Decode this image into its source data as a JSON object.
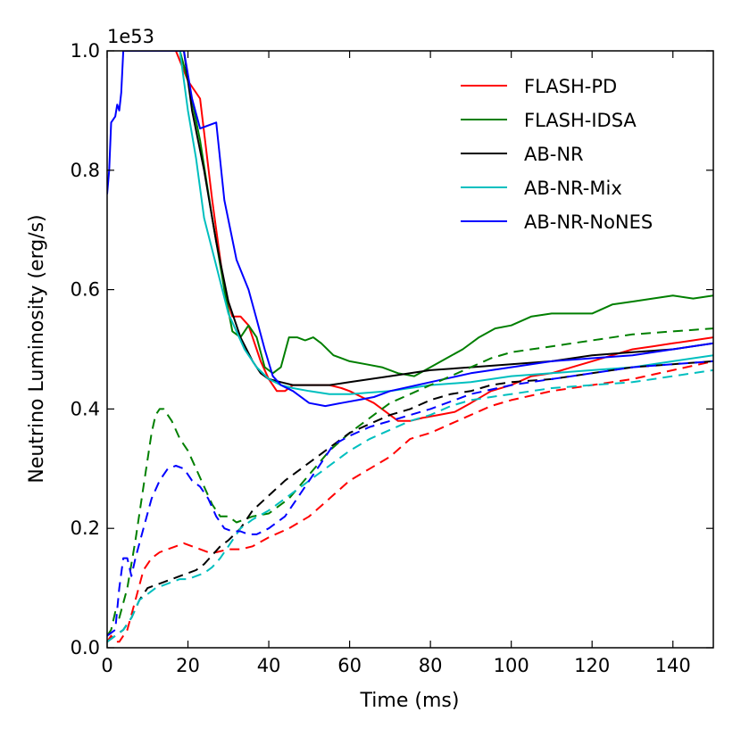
{
  "chart_data": {
    "type": "line",
    "title": "",
    "xlabel": "Time (ms)",
    "ylabel": "Neutrino Luminosity (erg/s)",
    "offset_label": "1e53",
    "xlim": [
      0,
      150
    ],
    "ylim": [
      0.0,
      1.0
    ],
    "x_ticks": [
      0,
      20,
      40,
      60,
      80,
      100,
      120,
      140
    ],
    "x_tick_labels": [
      "0",
      "20",
      "40",
      "60",
      "80",
      "100",
      "120",
      "140"
    ],
    "y_ticks": [
      0.0,
      0.2,
      0.4,
      0.6,
      0.8,
      1.0
    ],
    "y_tick_labels": [
      "0.0",
      "0.2",
      "0.4",
      "0.6",
      "0.8",
      "1.0"
    ],
    "grid": false,
    "legend_position": "top-right",
    "legend": [
      "FLASH-PD",
      "FLASH-IDSA",
      "AB-NR",
      "AB-NR-Mix",
      "AB-NR-NoNES"
    ],
    "series": [
      {
        "name": "FLASH-PD",
        "color": "#ff0000",
        "style": "solid",
        "x": [
          17,
          20,
          23,
          26,
          29,
          31,
          33,
          35,
          38,
          40,
          42,
          44,
          46,
          48,
          50,
          52,
          55,
          58,
          60,
          63,
          66,
          69,
          72,
          75,
          78,
          82,
          86,
          90,
          95,
          100,
          105,
          110,
          115,
          120,
          125,
          130,
          135,
          140,
          145,
          150
        ],
        "y": [
          1.0,
          0.95,
          0.92,
          0.75,
          0.6,
          0.555,
          0.555,
          0.54,
          0.48,
          0.45,
          0.43,
          0.43,
          0.44,
          0.44,
          0.44,
          0.44,
          0.44,
          0.435,
          0.43,
          0.42,
          0.41,
          0.395,
          0.38,
          0.38,
          0.385,
          0.39,
          0.395,
          0.41,
          0.43,
          0.44,
          0.455,
          0.46,
          0.47,
          0.48,
          0.49,
          0.5,
          0.505,
          0.51,
          0.515,
          0.52
        ]
      },
      {
        "name": "FLASH-IDSA",
        "color": "#007f00",
        "style": "solid",
        "x": [
          18,
          20,
          23,
          26,
          29,
          31,
          33,
          35,
          37,
          39,
          41,
          43,
          45,
          47,
          49,
          51,
          53,
          56,
          60,
          64,
          68,
          72,
          76,
          80,
          84,
          88,
          92,
          96,
          100,
          105,
          110,
          115,
          120,
          125,
          130,
          135,
          140,
          145,
          150
        ],
        "y": [
          1.0,
          0.95,
          0.85,
          0.72,
          0.6,
          0.53,
          0.52,
          0.54,
          0.52,
          0.47,
          0.46,
          0.47,
          0.52,
          0.52,
          0.515,
          0.52,
          0.51,
          0.49,
          0.48,
          0.475,
          0.47,
          0.46,
          0.455,
          0.47,
          0.485,
          0.5,
          0.52,
          0.535,
          0.54,
          0.555,
          0.56,
          0.56,
          0.56,
          0.575,
          0.58,
          0.585,
          0.59,
          0.585,
          0.59
        ]
      },
      {
        "name": "AB-NR",
        "color": "#000000",
        "style": "solid",
        "x": [
          19,
          21,
          24,
          27,
          30,
          33,
          36,
          38,
          40,
          43,
          46,
          50,
          55,
          60,
          70,
          80,
          90,
          100,
          110,
          120,
          130,
          140,
          150
        ],
        "y": [
          1.0,
          0.9,
          0.8,
          0.68,
          0.58,
          0.52,
          0.48,
          0.46,
          0.45,
          0.445,
          0.44,
          0.44,
          0.44,
          0.445,
          0.455,
          0.465,
          0.47,
          0.475,
          0.48,
          0.49,
          0.495,
          0.5,
          0.51
        ]
      },
      {
        "name": "AB-NR-Mix",
        "color": "#00bfbf",
        "style": "solid",
        "x": [
          18,
          20,
          22,
          24,
          27,
          30,
          32,
          34,
          37,
          40,
          43,
          46,
          50,
          55,
          60,
          70,
          80,
          90,
          100,
          110,
          120,
          130,
          140,
          150
        ],
        "y": [
          1.0,
          0.9,
          0.82,
          0.72,
          0.64,
          0.56,
          0.53,
          0.5,
          0.47,
          0.45,
          0.44,
          0.435,
          0.43,
          0.425,
          0.425,
          0.43,
          0.44,
          0.445,
          0.455,
          0.46,
          0.465,
          0.47,
          0.48,
          0.49
        ]
      },
      {
        "name": "AB-NR-NoNES",
        "color": "#0000ff",
        "style": "solid",
        "x": [
          0,
          0.5,
          1,
          2,
          2.5,
          3,
          3.5,
          4,
          19,
          21,
          23,
          27,
          29,
          32,
          35,
          37,
          39,
          41,
          43,
          46,
          50,
          54,
          58,
          62,
          66,
          70,
          80,
          90,
          100,
          110,
          120,
          130,
          140,
          150
        ],
        "y": [
          0.76,
          0.8,
          0.88,
          0.89,
          0.91,
          0.9,
          0.93,
          1.0,
          1.0,
          0.92,
          0.87,
          0.88,
          0.75,
          0.65,
          0.6,
          0.55,
          0.5,
          0.455,
          0.44,
          0.43,
          0.41,
          0.405,
          0.41,
          0.415,
          0.42,
          0.43,
          0.445,
          0.46,
          0.47,
          0.48,
          0.485,
          0.49,
          0.5,
          0.51
        ]
      },
      {
        "name": "FLASH-PD",
        "color": "#ff0000",
        "style": "dashed",
        "x": [
          0,
          1,
          2,
          3,
          5,
          7,
          9,
          11,
          13,
          15,
          17,
          19,
          21,
          23,
          25,
          27,
          30,
          33,
          36,
          40,
          45,
          50,
          55,
          60,
          65,
          70,
          75,
          80,
          85,
          90,
          95,
          100,
          110,
          120,
          130,
          140,
          150
        ],
        "y": [
          0.01,
          0.02,
          0.01,
          0.01,
          0.03,
          0.08,
          0.13,
          0.15,
          0.16,
          0.165,
          0.17,
          0.175,
          0.17,
          0.165,
          0.16,
          0.16,
          0.165,
          0.165,
          0.17,
          0.185,
          0.2,
          0.22,
          0.25,
          0.28,
          0.3,
          0.32,
          0.35,
          0.36,
          0.375,
          0.39,
          0.405,
          0.415,
          0.43,
          0.44,
          0.45,
          0.465,
          0.48
        ]
      },
      {
        "name": "FLASH-IDSA",
        "color": "#007f00",
        "style": "dashed",
        "x": [
          0,
          1,
          2,
          3,
          5,
          7,
          9,
          11,
          12,
          13,
          14,
          16,
          18,
          20,
          22,
          24,
          26,
          28,
          30,
          32,
          34,
          36,
          40,
          45,
          50,
          55,
          60,
          65,
          70,
          75,
          80,
          85,
          90,
          95,
          100,
          110,
          120,
          130,
          140,
          150
        ],
        "y": [
          0.02,
          0.03,
          0.06,
          0.05,
          0.1,
          0.18,
          0.27,
          0.36,
          0.39,
          0.4,
          0.4,
          0.38,
          0.35,
          0.33,
          0.3,
          0.27,
          0.24,
          0.22,
          0.22,
          0.21,
          0.215,
          0.22,
          0.225,
          0.25,
          0.29,
          0.33,
          0.36,
          0.385,
          0.41,
          0.425,
          0.44,
          0.455,
          0.47,
          0.485,
          0.495,
          0.505,
          0.515,
          0.525,
          0.53,
          0.535
        ]
      },
      {
        "name": "AB-NR",
        "color": "#000000",
        "style": "dashed",
        "x": [
          0,
          2,
          4,
          6,
          8,
          10,
          12,
          14,
          16,
          18,
          20,
          22,
          24,
          26,
          28,
          30,
          33,
          36,
          40,
          44,
          48,
          52,
          56,
          60,
          65,
          70,
          75,
          80,
          85,
          90,
          95,
          100,
          110,
          120,
          130,
          140,
          150
        ],
        "y": [
          0.01,
          0.02,
          0.03,
          0.05,
          0.08,
          0.1,
          0.105,
          0.11,
          0.115,
          0.12,
          0.125,
          0.13,
          0.14,
          0.155,
          0.17,
          0.18,
          0.2,
          0.23,
          0.255,
          0.28,
          0.3,
          0.32,
          0.34,
          0.36,
          0.375,
          0.39,
          0.4,
          0.415,
          0.425,
          0.43,
          0.44,
          0.445,
          0.45,
          0.46,
          0.47,
          0.475,
          0.48
        ]
      },
      {
        "name": "AB-NR-Mix",
        "color": "#00bfbf",
        "style": "dashed",
        "x": [
          0,
          2,
          4,
          6,
          8,
          10,
          12,
          14,
          16,
          18,
          20,
          22,
          24,
          26,
          28,
          30,
          33,
          36,
          40,
          44,
          48,
          52,
          56,
          60,
          65,
          70,
          75,
          80,
          85,
          90,
          95,
          100,
          110,
          120,
          130,
          140,
          150
        ],
        "y": [
          0.01,
          0.02,
          0.03,
          0.05,
          0.08,
          0.09,
          0.1,
          0.105,
          0.11,
          0.115,
          0.115,
          0.12,
          0.125,
          0.135,
          0.15,
          0.17,
          0.2,
          0.215,
          0.23,
          0.25,
          0.27,
          0.29,
          0.31,
          0.33,
          0.35,
          0.365,
          0.38,
          0.39,
          0.405,
          0.415,
          0.42,
          0.425,
          0.435,
          0.44,
          0.445,
          0.455,
          0.465
        ]
      },
      {
        "name": "AB-NR-NoNES",
        "color": "#0000ff",
        "style": "dashed",
        "x": [
          0,
          2,
          3,
          4,
          5,
          6,
          7,
          9,
          11,
          13,
          15,
          17,
          19,
          21,
          23,
          25,
          27,
          29,
          31,
          33,
          35,
          37,
          40,
          44,
          48,
          52,
          56,
          60,
          65,
          70,
          75,
          80,
          90,
          100,
          110,
          120,
          130,
          140,
          150
        ],
        "y": [
          0.02,
          0.03,
          0.1,
          0.15,
          0.15,
          0.12,
          0.15,
          0.2,
          0.25,
          0.28,
          0.3,
          0.305,
          0.3,
          0.28,
          0.27,
          0.25,
          0.22,
          0.2,
          0.195,
          0.195,
          0.19,
          0.19,
          0.2,
          0.22,
          0.26,
          0.3,
          0.34,
          0.355,
          0.37,
          0.38,
          0.39,
          0.4,
          0.425,
          0.44,
          0.45,
          0.46,
          0.47,
          0.475,
          0.48
        ]
      }
    ]
  }
}
